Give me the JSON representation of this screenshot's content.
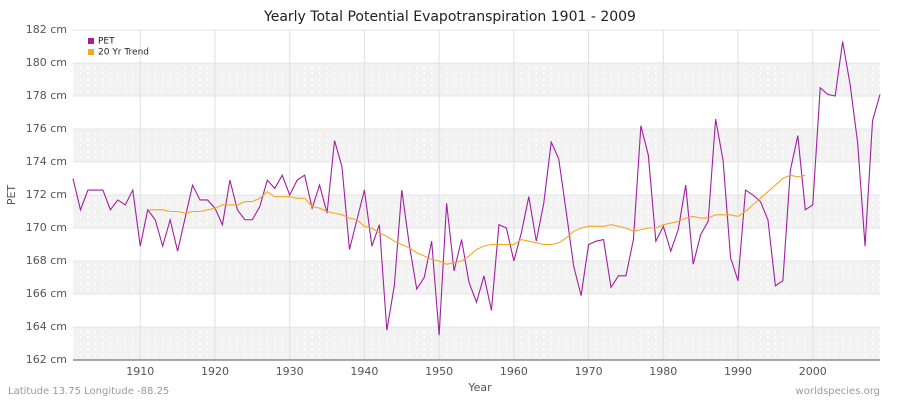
{
  "chart_data": {
    "type": "line",
    "title": "Yearly Total Potential Evapotranspiration 1901 - 2009",
    "x_label": "Year",
    "y_label": "PET",
    "footer_left": "Latitude 13.75 Longitude -88.25",
    "footer_right": "worldspecies.org",
    "x": [
      1901,
      1902,
      1903,
      1904,
      1905,
      1906,
      1907,
      1908,
      1909,
      1910,
      1911,
      1912,
      1913,
      1914,
      1915,
      1916,
      1917,
      1918,
      1919,
      1920,
      1921,
      1922,
      1923,
      1924,
      1925,
      1926,
      1927,
      1928,
      1929,
      1930,
      1931,
      1932,
      1933,
      1934,
      1935,
      1936,
      1937,
      1938,
      1939,
      1940,
      1941,
      1942,
      1943,
      1944,
      1945,
      1946,
      1947,
      1948,
      1949,
      1950,
      1951,
      1952,
      1953,
      1954,
      1955,
      1956,
      1957,
      1958,
      1959,
      1960,
      1961,
      1962,
      1963,
      1964,
      1965,
      1966,
      1967,
      1968,
      1969,
      1970,
      1971,
      1972,
      1973,
      1974,
      1975,
      1976,
      1977,
      1978,
      1979,
      1980,
      1981,
      1982,
      1983,
      1984,
      1985,
      1986,
      1987,
      1988,
      1989,
      1990,
      1991,
      1992,
      1993,
      1994,
      1995,
      1996,
      1997,
      1998,
      1999,
      2000,
      2001,
      2002,
      2003,
      2004,
      2005,
      2006,
      2007,
      2008,
      2009
    ],
    "series": [
      {
        "name": "PET",
        "color": "#a020a0",
        "values": [
          173.0,
          171.1,
          172.3,
          172.3,
          172.3,
          171.1,
          171.7,
          171.4,
          172.3,
          168.9,
          171.1,
          170.5,
          168.9,
          170.5,
          168.6,
          170.6,
          172.6,
          171.7,
          171.7,
          171.2,
          170.2,
          172.9,
          171.1,
          170.5,
          170.5,
          171.3,
          172.9,
          172.4,
          173.2,
          172.0,
          172.9,
          173.2,
          171.2,
          172.6,
          170.9,
          175.3,
          173.7,
          168.7,
          170.5,
          172.3,
          168.9,
          170.2,
          163.8,
          166.5,
          172.3,
          169.0,
          166.3,
          167.0,
          169.2,
          163.5,
          171.5,
          167.4,
          169.3,
          166.7,
          165.5,
          167.1,
          165.0,
          170.2,
          170.0,
          168.0,
          169.7,
          171.9,
          169.2,
          171.5,
          175.2,
          174.2,
          171.0,
          167.7,
          165.9,
          169.0,
          169.2,
          169.3,
          166.4,
          167.1,
          167.1,
          169.3,
          176.2,
          174.4,
          169.2,
          170.1,
          168.6,
          169.9,
          172.6,
          167.8,
          169.6,
          170.4,
          176.6,
          174.1,
          168.2,
          166.8,
          172.3,
          172.0,
          171.6,
          170.5,
          166.5,
          166.8,
          173.5,
          175.6,
          171.1,
          171.4,
          178.5,
          178.1,
          178.0,
          181.3,
          178.7,
          175.2,
          168.9,
          176.5,
          178.1
        ]
      },
      {
        "name": "20 Yr Trend",
        "color": "#f5a623",
        "values": [
          null,
          null,
          null,
          null,
          null,
          null,
          null,
          null,
          null,
          null,
          171.1,
          171.1,
          171.1,
          171.0,
          171.0,
          170.9,
          171.0,
          171.0,
          171.1,
          171.2,
          171.4,
          171.4,
          171.4,
          171.6,
          171.6,
          171.8,
          172.2,
          171.9,
          171.9,
          171.9,
          171.8,
          171.8,
          171.3,
          171.2,
          171.0,
          170.9,
          170.8,
          170.6,
          170.5,
          170.1,
          170.0,
          169.7,
          169.5,
          169.2,
          169.0,
          168.8,
          168.5,
          168.3,
          168.1,
          168.0,
          167.8,
          167.9,
          168.0,
          168.3,
          168.7,
          168.9,
          169.0,
          169.0,
          169.0,
          169.0,
          169.3,
          169.2,
          169.1,
          169.0,
          169.0,
          169.1,
          169.4,
          169.8,
          170.0,
          170.1,
          170.1,
          170.1,
          170.2,
          170.1,
          170.0,
          169.8,
          169.9,
          170.0,
          170.0,
          170.2,
          170.3,
          170.4,
          170.6,
          170.7,
          170.6,
          170.6,
          170.8,
          170.8,
          170.8,
          170.7,
          171.0,
          171.4,
          171.8,
          172.2,
          172.6,
          173.0,
          173.2,
          173.1,
          173.2,
          null,
          null,
          null,
          null,
          null,
          null,
          null,
          null,
          null,
          null
        ]
      }
    ],
    "xlim": [
      1901,
      2009
    ],
    "xticks": [
      1910,
      1920,
      1930,
      1940,
      1950,
      1960,
      1970,
      1980,
      1990,
      2000
    ],
    "ylim": [
      162,
      182
    ],
    "yticks": [
      {
        "value": 162,
        "label": "162 cm"
      },
      {
        "value": 164,
        "label": "164 cm"
      },
      {
        "value": 166,
        "label": "166 cm"
      },
      {
        "value": 168,
        "label": "168 cm"
      },
      {
        "value": 170,
        "label": "170 cm"
      },
      {
        "value": 172,
        "label": "172 cm"
      },
      {
        "value": 174,
        "label": "174 cm"
      },
      {
        "value": 176,
        "label": "176 cm"
      },
      {
        "value": 178,
        "label": "178 cm"
      },
      {
        "value": 180,
        "label": "180 cm"
      },
      {
        "value": 182,
        "label": "182 cm"
      }
    ],
    "grid": true,
    "legend": "top-left"
  }
}
